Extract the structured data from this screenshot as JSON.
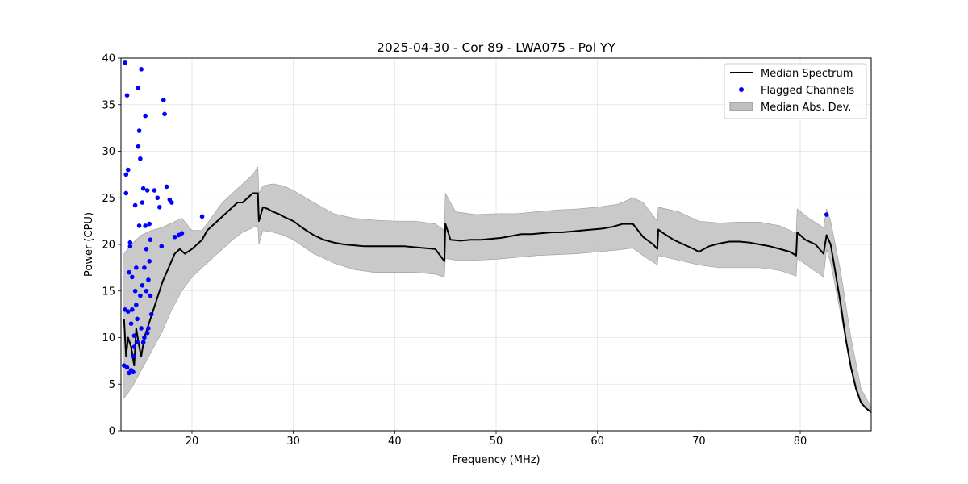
{
  "chart_data": {
    "type": "line",
    "title": "2025-04-30 - Cor 89 - LWA075 - Pol YY",
    "xlabel": "Frequency (MHz)",
    "ylabel": "Power (CPU)",
    "xlim": [
      13,
      87
    ],
    "ylim": [
      0,
      40
    ],
    "xticks": [
      "20",
      "30",
      "40",
      "50",
      "60",
      "70",
      "80"
    ],
    "yticks": [
      "0",
      "5",
      "10",
      "15",
      "20",
      "25",
      "30",
      "35",
      "40"
    ],
    "grid": true,
    "legend": {
      "position": "top-right",
      "entries": [
        "Median Spectrum",
        "Flagged Channels",
        "Median Abs. Dev."
      ]
    },
    "colors": {
      "median": "#000000",
      "flagged": "#0000ff",
      "band": "#bfbfbf"
    },
    "series": [
      {
        "name": "Median Spectrum",
        "kind": "line",
        "x": [
          13.3,
          13.5,
          13.7,
          14.0,
          14.3,
          14.5,
          14.8,
          15.0,
          15.3,
          15.6,
          15.9,
          16.2,
          16.5,
          16.8,
          17.1,
          17.5,
          17.9,
          18.3,
          18.8,
          19.3,
          20.0,
          20.5,
          21.0,
          21.5,
          22.0,
          22.5,
          23.0,
          23.5,
          24.0,
          24.5,
          25.0,
          25.5,
          26.0,
          26.5,
          26.6,
          27.0,
          27.5,
          28.0,
          28.5,
          29.0,
          30.0,
          31.0,
          32.0,
          33.0,
          34.0,
          35.0,
          36.0,
          37.0,
          38.0,
          39.0,
          40.0,
          41.0,
          42.0,
          43.0,
          44.0,
          44.9,
          45.0,
          45.5,
          46.5,
          47.5,
          48.5,
          49.5,
          50.5,
          51.5,
          52.5,
          53.5,
          54.5,
          55.5,
          56.5,
          57.5,
          58.5,
          59.5,
          60.5,
          61.5,
          62.5,
          63.5,
          64.5,
          65.5,
          65.9,
          66.0,
          66.5,
          67.5,
          68.5,
          69.5,
          70.0,
          71.0,
          72.0,
          73.0,
          74.0,
          75.0,
          76.0,
          77.0,
          78.0,
          79.0,
          79.6,
          79.7,
          80.5,
          81.5,
          82.3,
          82.6,
          83.0,
          83.5,
          84.0,
          84.5,
          85.0,
          85.5,
          86.0,
          86.5,
          87.0
        ],
        "y": [
          12,
          8,
          10,
          9,
          7,
          11,
          9,
          8,
          10,
          11,
          12,
          13,
          14,
          15,
          16,
          17,
          18,
          19,
          19.5,
          19,
          19.5,
          20,
          20.5,
          21.5,
          22,
          22.5,
          23,
          23.5,
          24,
          24.5,
          24.5,
          25,
          25.5,
          25.5,
          22.5,
          24,
          23.8,
          23.5,
          23.3,
          23,
          22.5,
          21.7,
          21,
          20.5,
          20.2,
          20,
          19.9,
          19.8,
          19.8,
          19.8,
          19.8,
          19.8,
          19.7,
          19.6,
          19.5,
          18.2,
          22.2,
          20.5,
          20.4,
          20.5,
          20.5,
          20.6,
          20.7,
          20.9,
          21.1,
          21.1,
          21.2,
          21.3,
          21.3,
          21.4,
          21.5,
          21.6,
          21.7,
          21.9,
          22.2,
          22.2,
          20.8,
          20.0,
          19.5,
          21.6,
          21.2,
          20.5,
          20.0,
          19.5,
          19.2,
          19.8,
          20.1,
          20.3,
          20.3,
          20.2,
          20.0,
          19.8,
          19.5,
          19.2,
          18.8,
          21.3,
          20.5,
          20.0,
          19.0,
          21.0,
          20.0,
          16.8,
          13.5,
          9.8,
          6.8,
          4.5,
          3.0,
          2.4,
          2.0
        ]
      },
      {
        "name": "Flagged Channels",
        "kind": "scatter",
        "x": [
          13.3,
          13.4,
          13.4,
          13.5,
          13.5,
          13.6,
          13.6,
          13.7,
          13.7,
          13.8,
          13.8,
          13.9,
          13.9,
          14.0,
          14.0,
          14.1,
          14.1,
          14.2,
          14.2,
          14.3,
          14.3,
          14.4,
          14.4,
          14.5,
          14.5,
          14.6,
          14.6,
          14.7,
          14.7,
          14.8,
          14.8,
          14.9,
          14.9,
          15.0,
          15.0,
          15.1,
          15.1,
          15.2,
          15.2,
          15.3,
          15.3,
          15.4,
          15.4,
          15.5,
          15.5,
          15.6,
          15.6,
          15.7,
          15.7,
          15.8,
          15.8,
          15.9,
          15.9,
          16.0,
          16.3,
          16.6,
          16.8,
          17.0,
          17.2,
          17.3,
          17.5,
          17.8,
          18.0,
          18.3,
          18.7,
          19.0,
          21.0,
          82.6
        ],
        "y": [
          7,
          13,
          39.5,
          27.5,
          25.5,
          6.8,
          36,
          12.8,
          28,
          6.2,
          17,
          20.2,
          19.8,
          6.5,
          11.5,
          16.5,
          13,
          6.3,
          8,
          10.2,
          9,
          15,
          24.2,
          13.5,
          17.5,
          12,
          9.5,
          30.5,
          36.8,
          32.2,
          22,
          14.5,
          29.2,
          11,
          38.8,
          15.6,
          24.5,
          26,
          9.5,
          17.5,
          10,
          22,
          33.8,
          15,
          19.5,
          10.5,
          25.8,
          16.2,
          11,
          22.2,
          18.2,
          20.5,
          14.5,
          12.5,
          25.8,
          25,
          24,
          19.8,
          35.5,
          34,
          26.2,
          24.8,
          24.5,
          20.8,
          21,
          21.2,
          23,
          23.2
        ]
      },
      {
        "name": "Median Abs. Dev.",
        "kind": "band",
        "x": [
          13.3,
          14.0,
          15.0,
          16.0,
          17.0,
          18.0,
          19.0,
          20.0,
          21.0,
          22.0,
          23.0,
          24.0,
          25.0,
          26.0,
          26.5,
          26.6,
          27.0,
          28.0,
          29.0,
          30.0,
          32.0,
          34.0,
          36.0,
          38.0,
          40.0,
          42.0,
          44.0,
          44.9,
          45.0,
          46.0,
          48.0,
          50.0,
          52.0,
          54.0,
          56.0,
          58.0,
          60.0,
          62.0,
          63.5,
          64.5,
          65.9,
          66.0,
          68.0,
          70.0,
          72.0,
          74.0,
          76.0,
          78.0,
          79.6,
          79.7,
          81.0,
          82.3,
          82.6,
          83.0,
          84.0,
          85.0,
          86.0,
          87.0
        ],
        "lower": [
          3.5,
          4.5,
          6.5,
          8.5,
          10.5,
          13,
          15,
          16.5,
          17.5,
          18.5,
          19.5,
          20.5,
          21.3,
          21.8,
          22.0,
          20.0,
          21.5,
          21.3,
          21.0,
          20.5,
          19.0,
          18.0,
          17.3,
          17.0,
          17.0,
          17.0,
          16.8,
          16.5,
          18.5,
          18.3,
          18.3,
          18.4,
          18.6,
          18.8,
          18.9,
          19.0,
          19.2,
          19.4,
          19.6,
          18.8,
          17.8,
          18.8,
          18.3,
          17.8,
          17.5,
          17.5,
          17.5,
          17.2,
          16.6,
          18.5,
          17.5,
          16.5,
          19.5,
          18.0,
          12.5,
          7.0,
          3.0,
          2.0
        ],
        "upper": [
          19,
          20,
          21,
          21.5,
          21.8,
          22.3,
          22.8,
          21.5,
          21.5,
          23.0,
          24.5,
          25.5,
          26.5,
          27.5,
          28.3,
          25.5,
          26.3,
          26.5,
          26.3,
          25.8,
          24.5,
          23.3,
          22.8,
          22.6,
          22.5,
          22.5,
          22.2,
          21.5,
          25.5,
          23.5,
          23.2,
          23.3,
          23.3,
          23.5,
          23.7,
          23.8,
          24.0,
          24.3,
          25.0,
          24.5,
          22.5,
          24.0,
          23.5,
          22.5,
          22.3,
          22.4,
          22.4,
          22.0,
          21.2,
          23.8,
          22.7,
          21.8,
          23.8,
          22.5,
          17.0,
          10.0,
          4.5,
          2.5
        ]
      }
    ]
  }
}
